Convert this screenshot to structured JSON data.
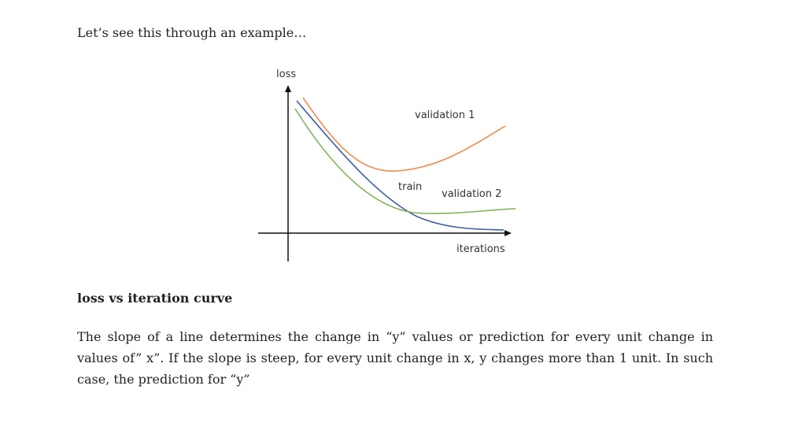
{
  "intro": "Let’s see this through an example…",
  "diagram": {
    "y_axis_label": "loss",
    "x_axis_label": "iterations",
    "curves": {
      "validation_1": "validation 1",
      "train": "train",
      "validation_2": "validation 2"
    }
  },
  "caption": "loss vs iteration curve",
  "paragraph": "The slope of a line determines the change in “y” values or prediction for every unit change in values of” x”. If the slope is steep, for every unit change in x, y changes more than 1 unit. In such case, the prediction for “y”"
}
